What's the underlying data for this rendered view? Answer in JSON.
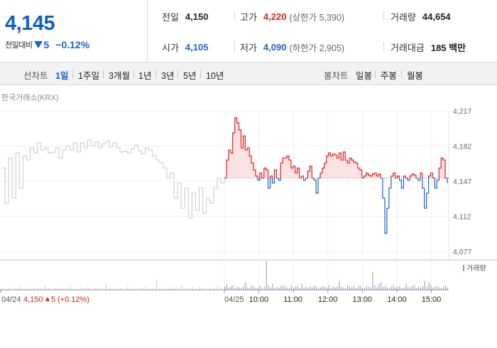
{
  "summary": {
    "price": "4,145",
    "diff_label": "전일대비",
    "diff_value": "5",
    "diff_rate": "−0.12%",
    "prev_close_label": "전일",
    "prev_close": "4,150",
    "open_label": "시가",
    "open": "4,105",
    "high_label": "고가",
    "high": "4,220",
    "upper_limit": "(상한가 5,390)",
    "low_label": "저가",
    "low": "4,090",
    "lower_limit": "(하한가 2,905)",
    "volume_label": "거래량",
    "volume": "44,654",
    "amount_label": "거래대금",
    "amount": "185 백만"
  },
  "tabs": {
    "line_title": "선차트",
    "line_tabs": [
      "1일",
      "1주일",
      "3개월",
      "1년",
      "3년",
      "5년",
      "10년"
    ],
    "active_index": 0,
    "candle_title": "봉차트",
    "candle_tabs": [
      "일봉",
      "주봉",
      "월봉"
    ]
  },
  "colors": {
    "up": "#e02020",
    "down": "#1a63d1",
    "prev_day": "#c8c8c8",
    "volume": "#9b8fc0"
  },
  "chart_data": {
    "type": "line",
    "exchange_label": "한국거래소(KRX)",
    "ylim": [
      4077,
      4217
    ],
    "yticks": [
      "4,217",
      "4,182",
      "4,147",
      "4,112",
      "4,077"
    ],
    "ytick_values": [
      4217,
      4182,
      4147,
      4112,
      4077
    ],
    "base_price": 4150,
    "xticks": [
      "04/25",
      "10:00",
      "11:00",
      "12:00",
      "13:00",
      "14:00",
      "15:00"
    ],
    "xtick_positions_hours": [
      9.0,
      10.0,
      11.0,
      12.0,
      13.0,
      14.0,
      15.0
    ],
    "x_range_hours": [
      9.0,
      15.5
    ],
    "prev_day": {
      "label": "04/24",
      "close": "4,150",
      "diff": "5",
      "rate": "(+0.12%)",
      "values": [
        4160,
        4125,
        4170,
        4130,
        4175,
        4140,
        4172,
        4168,
        4180,
        4175,
        4185,
        4178,
        4180,
        4175,
        4176,
        4180,
        4170,
        4178,
        4182,
        4178,
        4185,
        4176,
        4185,
        4180,
        4188,
        4182,
        4186,
        4180,
        4184,
        4187,
        4181,
        4185,
        4180,
        4176,
        4177,
        4175,
        4179,
        4183,
        4177,
        4174,
        4180,
        4178,
        4172,
        4168,
        4165,
        4160,
        4150,
        4155,
        4130,
        4145,
        4120,
        4140,
        4110,
        4135,
        4118,
        4140,
        4115,
        4130,
        4125,
        4140,
        4150,
        4145,
        4150
      ]
    },
    "today": {
      "values": [
        4150,
        4168,
        4178,
        4175,
        4195,
        4210,
        4205,
        4198,
        4180,
        4192,
        4178,
        4180,
        4172,
        4165,
        4158,
        4152,
        4148,
        4155,
        4150,
        4160,
        4158,
        4140,
        4152,
        4145,
        4158,
        4150,
        4148,
        4165,
        4170,
        4170,
        4172,
        4168,
        4160,
        4162,
        4155,
        4160,
        4150,
        4152,
        4148,
        4150,
        4157,
        4162,
        4150,
        4148,
        4135,
        4150,
        4155,
        4160,
        4165,
        4172,
        4175,
        4172,
        4174,
        4173,
        4170,
        4175,
        4168,
        4176,
        4168,
        4165,
        4170,
        4168,
        4166,
        4165,
        4160,
        4158,
        4150,
        4152,
        4155,
        4153,
        4152,
        4154,
        4155,
        4152,
        4154,
        4150,
        4130,
        4095,
        4120,
        4140,
        4152,
        4155,
        4150,
        4152,
        4148,
        4140,
        4152,
        4150,
        4148,
        4152,
        4154,
        4153,
        4150,
        4148,
        4155,
        4140,
        4120,
        4135,
        4152,
        4155,
        4150,
        4140,
        4148,
        4160,
        4170,
        4168,
        4150,
        4145
      ]
    },
    "volume_label": "거래량",
    "volume_prev": [
      2,
      1,
      3,
      1,
      2,
      4,
      1,
      2,
      1,
      3,
      2,
      1,
      5,
      2,
      1,
      2,
      3,
      1,
      2,
      6,
      2,
      1,
      3,
      2,
      4,
      1,
      2,
      3,
      1,
      8,
      2,
      1,
      3,
      2,
      1,
      4,
      2,
      3,
      1,
      2,
      5,
      1,
      2,
      14,
      3,
      2,
      1,
      4,
      2,
      3,
      6,
      2,
      1,
      3,
      2,
      4,
      2,
      1,
      3,
      2,
      5,
      3,
      4
    ],
    "volume_today": [
      4,
      8,
      3,
      5,
      6,
      2,
      4,
      3,
      2,
      5,
      10,
      3,
      2,
      6,
      4,
      2,
      3,
      5,
      2,
      4,
      38,
      6,
      3,
      8,
      2,
      4,
      3,
      5,
      6,
      4,
      3,
      2,
      6,
      3,
      4,
      5,
      2,
      8,
      3,
      4,
      2,
      5,
      3,
      6,
      4,
      2,
      3,
      5,
      4,
      3,
      6,
      2,
      4,
      3,
      5,
      12,
      4,
      3,
      2,
      6,
      4,
      3,
      5,
      2,
      4,
      6,
      3,
      2,
      5,
      4,
      3,
      24,
      6,
      3,
      8,
      10,
      4,
      5,
      3,
      2,
      4,
      6,
      3,
      4,
      5,
      2,
      3,
      8,
      4,
      3,
      5,
      6,
      2,
      4,
      3,
      5,
      12,
      4,
      10,
      6,
      3,
      4,
      5,
      3,
      2,
      4,
      6,
      3
    ]
  }
}
